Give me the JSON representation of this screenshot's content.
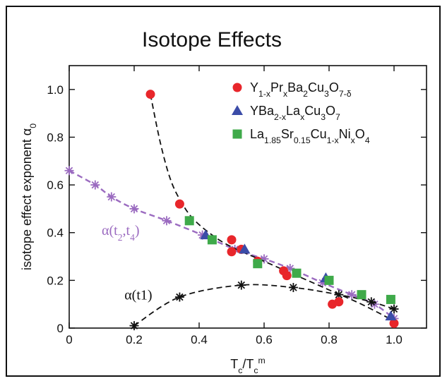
{
  "chart_data": {
    "type": "scatter",
    "title": "Isotope Effects",
    "xlabel": {
      "main": "T",
      "sub": "c",
      "slash": "/T",
      "sub2": "c",
      "sup": "m"
    },
    "ylabel": {
      "main": "isotope effect exponent α",
      "sub": "0"
    },
    "xlim": [
      0,
      1.1
    ],
    "ylim": [
      0,
      1.1
    ],
    "x_ticks": [
      {
        "value": 0,
        "label": "0"
      },
      {
        "value": 0.2,
        "label": "0.2"
      },
      {
        "value": 0.4,
        "label": "0.4"
      },
      {
        "value": 0.6,
        "label": "0.6"
      },
      {
        "value": 0.8,
        "label": "0.8"
      },
      {
        "value": 1.0,
        "label": "1.0"
      }
    ],
    "y_ticks": [
      {
        "value": 0,
        "label": "0"
      },
      {
        "value": 0.2,
        "label": "0.2"
      },
      {
        "value": 0.4,
        "label": "0.4"
      },
      {
        "value": 0.6,
        "label": "0.6"
      },
      {
        "value": 0.8,
        "label": "0.8"
      },
      {
        "value": 1.0,
        "label": "1.0"
      }
    ],
    "series": [
      {
        "name": "Y1-xPrxBa2Cu3O7-δ",
        "label_parts": [
          {
            "t": "Y"
          },
          {
            "t": "1-x",
            "sub": true
          },
          {
            "t": "Pr"
          },
          {
            "t": "x",
            "sub": true
          },
          {
            "t": "Ba"
          },
          {
            "t": "2",
            "sub": true
          },
          {
            "t": "Cu"
          },
          {
            "t": "3",
            "sub": true
          },
          {
            "t": "O"
          },
          {
            "t": "7-δ",
            "sub": true
          }
        ],
        "marker": "circle",
        "color": "#e8262b",
        "points": [
          [
            0.25,
            0.98
          ],
          [
            0.34,
            0.52
          ],
          [
            0.5,
            0.37
          ],
          [
            0.5,
            0.32
          ],
          [
            0.53,
            0.33
          ],
          [
            0.58,
            0.28
          ],
          [
            0.66,
            0.24
          ],
          [
            0.67,
            0.22
          ],
          [
            0.81,
            0.1
          ],
          [
            0.83,
            0.11
          ],
          [
            1.0,
            0.02
          ]
        ]
      },
      {
        "name": "YBa2-xLaxCu3O7",
        "label_parts": [
          {
            "t": "YBa"
          },
          {
            "t": "2-x",
            "sub": true
          },
          {
            "t": "La"
          },
          {
            "t": "x",
            "sub": true
          },
          {
            "t": "Cu"
          },
          {
            "t": "3",
            "sub": true
          },
          {
            "t": "O"
          },
          {
            "t": "7",
            "sub": true
          }
        ],
        "marker": "triangle",
        "color": "#3b4ca8",
        "points": [
          [
            0.42,
            0.39
          ],
          [
            0.54,
            0.33
          ],
          [
            0.79,
            0.21
          ],
          [
            0.99,
            0.05
          ]
        ]
      },
      {
        "name": "La1.85Sr0.15Cu1-xNixO4",
        "label_parts": [
          {
            "t": "La"
          },
          {
            "t": "1.85",
            "sub": true
          },
          {
            "t": "Sr"
          },
          {
            "t": "0.15",
            "sub": true
          },
          {
            "t": "Cu"
          },
          {
            "t": "1-x",
            "sub": true
          },
          {
            "t": "Ni"
          },
          {
            "t": "x",
            "sub": true
          },
          {
            "t": "O"
          },
          {
            "t": "4",
            "sub": true
          }
        ],
        "marker": "square",
        "color": "#3faa4a",
        "points": [
          [
            0.37,
            0.45
          ],
          [
            0.44,
            0.37
          ],
          [
            0.58,
            0.27
          ],
          [
            0.7,
            0.23
          ],
          [
            0.8,
            0.2
          ],
          [
            0.9,
            0.14
          ],
          [
            0.99,
            0.12
          ]
        ]
      }
    ],
    "curves": [
      {
        "name": "α(t2,t4)",
        "label_parts": [
          {
            "t": "α(t"
          },
          {
            "t": "2",
            "sub": true
          },
          {
            "t": ",t"
          },
          {
            "t": "4",
            "sub": true
          },
          {
            "t": ")"
          }
        ],
        "label_at": [
          0.1,
          0.39
        ],
        "color": "#9b6bc0",
        "marker": "asterisk",
        "points": [
          [
            0.0,
            0.66
          ],
          [
            0.08,
            0.6
          ],
          [
            0.13,
            0.55
          ],
          [
            0.2,
            0.5
          ],
          [
            0.3,
            0.45
          ],
          [
            0.41,
            0.39
          ],
          [
            0.51,
            0.33
          ],
          [
            0.6,
            0.29
          ],
          [
            0.68,
            0.25
          ],
          [
            0.78,
            0.19
          ],
          [
            0.87,
            0.14
          ],
          [
            0.94,
            0.1
          ],
          [
            1.0,
            0.04
          ]
        ]
      },
      {
        "name": "α(t1)",
        "label_parts": [
          {
            "t": "α(t1)"
          }
        ],
        "label_at": [
          0.17,
          0.12
        ],
        "color": "#111111",
        "marker": "asterisk",
        "points": [
          [
            0.2,
            0.01
          ],
          [
            0.34,
            0.13
          ],
          [
            0.53,
            0.18
          ],
          [
            0.69,
            0.17
          ],
          [
            0.83,
            0.14
          ],
          [
            0.93,
            0.11
          ],
          [
            1.0,
            0.08
          ]
        ]
      },
      {
        "name": "red-fit",
        "color": "#111111",
        "marker": "none",
        "points": [
          [
            0.25,
            0.98
          ],
          [
            0.28,
            0.78
          ],
          [
            0.31,
            0.63
          ],
          [
            0.34,
            0.54
          ],
          [
            0.38,
            0.46
          ],
          [
            0.44,
            0.39
          ],
          [
            0.5,
            0.34
          ],
          [
            0.6,
            0.28
          ],
          [
            0.7,
            0.22
          ],
          [
            0.8,
            0.16
          ],
          [
            0.9,
            0.1
          ],
          [
            1.0,
            0.03
          ]
        ]
      }
    ],
    "legend": {
      "placement": "top-right"
    }
  }
}
